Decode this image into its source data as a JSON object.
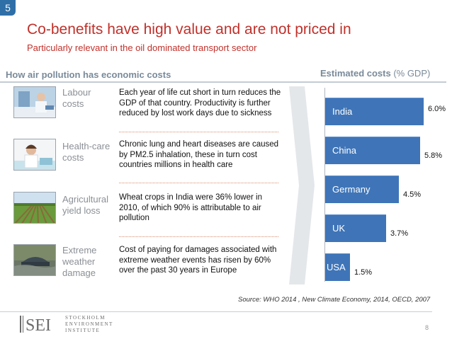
{
  "slide": {
    "number": "5",
    "title": "Co-benefits have high value and are not priced in",
    "subtitle": "Particularly relevant in the oil dominated transport sector",
    "page_number": "8"
  },
  "left_header": "How air pollution has economic costs",
  "right_header": {
    "bold": "Estimated costs",
    "suffix": " (% GDP)"
  },
  "rows": [
    {
      "label": "Labour\ncosts",
      "image_icon": "lab-worker-photo",
      "text": "Each year of life cut short in turn reduces the GDP of that country. Productivity is further reduced by lost work days due to sickness"
    },
    {
      "label": "Health-care\ncosts",
      "image_icon": "nurse-photo",
      "text": "Chronic lung and heart diseases are caused by PM2.5 inhalation, these in turn cost countries millions in health care"
    },
    {
      "label": "Agricultural\nyield loss",
      "image_icon": "crop-field-photo",
      "text": "Wheat crops in India were 36% lower in 2010, of which 90% is attributable to air pollution"
    },
    {
      "label": "Extreme\nweather\ndamage",
      "image_icon": "flooded-car-photo",
      "text": "Cost of paying for damages associated with extreme weather events has risen by 60% over the past 30 years in Europe"
    }
  ],
  "chart_data": {
    "type": "bar",
    "orientation": "horizontal",
    "title": "Estimated costs (% GDP)",
    "categories": [
      "India",
      "China",
      "Germany",
      "UK",
      "USA"
    ],
    "values": [
      6.0,
      5.8,
      4.5,
      3.7,
      1.5
    ],
    "value_labels": [
      "6.0%",
      "5.8%",
      "4.5%",
      "3.7%",
      "1.5%"
    ],
    "unit": "% GDP",
    "xlim": [
      0,
      6.0
    ],
    "bar_color": "#3f75b8"
  },
  "source": "Source: WHO 2014 , New Climate Economy, 2014, OECD, 2007",
  "logo": {
    "mark": "SEI",
    "lines": [
      "STOCKHOLM",
      "ENVIRONMENT",
      "INSTITUTE"
    ]
  },
  "colors": {
    "accent_red": "#c0312b",
    "header_gray": "#7a8a99",
    "badge_blue": "#2f6fa7"
  }
}
